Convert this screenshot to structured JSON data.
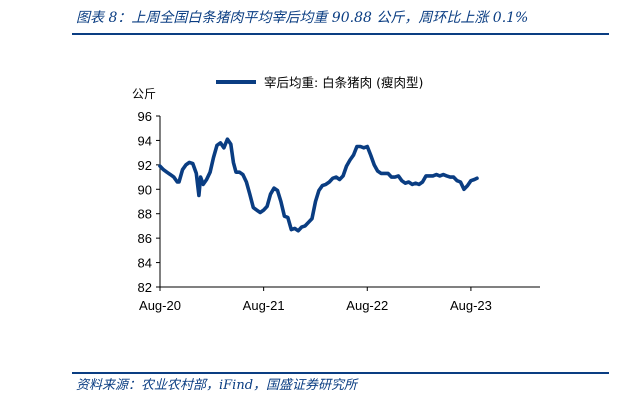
{
  "figure": {
    "title": "图表 8：上周全国白条猪肉平均宰后均重 90.88 公斤，周环比上涨 0.1%",
    "source": "资料来源：农业农村部，iFind，国盛证券研究所"
  },
  "chart_data": {
    "type": "line",
    "unit": "公斤",
    "ylim": [
      82,
      96
    ],
    "yticks": [
      82,
      84,
      86,
      88,
      90,
      92,
      94,
      96
    ],
    "ytick_labels": [
      "82",
      "84",
      "86",
      "88",
      "90",
      "92",
      "94",
      "96"
    ],
    "xticks": [
      {
        "label": "Aug-20",
        "t": 0
      },
      {
        "label": "Aug-21",
        "t": 12
      },
      {
        "label": "Aug-22",
        "t": 24
      },
      {
        "label": "Aug-23",
        "t": 36
      }
    ],
    "xlim": [
      0,
      44
    ],
    "grid": false,
    "legend_position": "top-center",
    "colors": {
      "series": "#0a3d82"
    },
    "series": [
      {
        "name": "宰后均重: 白条猪肉 (瘦肉型)",
        "points": [
          [
            0.0,
            91.9
          ],
          [
            0.4,
            91.6
          ],
          [
            0.8,
            91.4
          ],
          [
            1.2,
            91.2
          ],
          [
            1.6,
            91.0
          ],
          [
            2.0,
            90.6
          ],
          [
            2.2,
            90.6
          ],
          [
            2.6,
            91.6
          ],
          [
            3.0,
            92.0
          ],
          [
            3.4,
            92.2
          ],
          [
            3.8,
            92.1
          ],
          [
            4.2,
            91.3
          ],
          [
            4.5,
            89.5
          ],
          [
            4.7,
            91.0
          ],
          [
            5.0,
            90.4
          ],
          [
            5.4,
            90.8
          ],
          [
            5.8,
            91.4
          ],
          [
            6.2,
            92.6
          ],
          [
            6.6,
            93.6
          ],
          [
            7.0,
            93.8
          ],
          [
            7.4,
            93.4
          ],
          [
            7.8,
            94.1
          ],
          [
            8.2,
            93.7
          ],
          [
            8.5,
            92.2
          ],
          [
            8.8,
            91.4
          ],
          [
            9.2,
            91.4
          ],
          [
            9.6,
            91.2
          ],
          [
            10.0,
            90.6
          ],
          [
            10.4,
            89.6
          ],
          [
            10.8,
            88.5
          ],
          [
            11.2,
            88.3
          ],
          [
            11.6,
            88.1
          ],
          [
            12.0,
            88.3
          ],
          [
            12.4,
            88.6
          ],
          [
            12.8,
            89.6
          ],
          [
            13.2,
            90.1
          ],
          [
            13.6,
            89.9
          ],
          [
            14.0,
            89.0
          ],
          [
            14.4,
            87.8
          ],
          [
            14.8,
            87.7
          ],
          [
            15.2,
            86.7
          ],
          [
            15.6,
            86.8
          ],
          [
            16.0,
            86.6
          ],
          [
            16.4,
            86.9
          ],
          [
            16.8,
            87.0
          ],
          [
            17.2,
            87.3
          ],
          [
            17.6,
            87.6
          ],
          [
            18.0,
            89.0
          ],
          [
            18.4,
            89.9
          ],
          [
            18.8,
            90.3
          ],
          [
            19.2,
            90.4
          ],
          [
            19.6,
            90.6
          ],
          [
            20.0,
            90.9
          ],
          [
            20.4,
            91.0
          ],
          [
            20.8,
            90.8
          ],
          [
            21.2,
            91.1
          ],
          [
            21.6,
            91.9
          ],
          [
            22.0,
            92.4
          ],
          [
            22.4,
            92.8
          ],
          [
            22.8,
            93.5
          ],
          [
            23.2,
            93.5
          ],
          [
            23.6,
            93.4
          ],
          [
            24.0,
            93.5
          ],
          [
            24.4,
            92.8
          ],
          [
            24.8,
            92.0
          ],
          [
            25.2,
            91.5
          ],
          [
            25.6,
            91.3
          ],
          [
            26.0,
            91.3
          ],
          [
            26.4,
            91.3
          ],
          [
            26.8,
            91.0
          ],
          [
            27.2,
            91.0
          ],
          [
            27.6,
            91.1
          ],
          [
            28.0,
            90.7
          ],
          [
            28.4,
            90.5
          ],
          [
            28.8,
            90.6
          ],
          [
            29.2,
            90.4
          ],
          [
            29.6,
            90.5
          ],
          [
            30.0,
            90.4
          ],
          [
            30.4,
            90.6
          ],
          [
            30.8,
            91.1
          ],
          [
            31.2,
            91.1
          ],
          [
            31.6,
            91.1
          ],
          [
            32.0,
            91.2
          ],
          [
            32.4,
            91.1
          ],
          [
            32.8,
            91.2
          ],
          [
            33.2,
            91.1
          ],
          [
            33.6,
            91.0
          ],
          [
            34.0,
            91.0
          ],
          [
            34.4,
            90.7
          ],
          [
            34.8,
            90.6
          ],
          [
            35.2,
            90.0
          ],
          [
            35.6,
            90.3
          ],
          [
            36.0,
            90.7
          ],
          [
            36.4,
            90.8
          ],
          [
            36.7,
            90.9
          ]
        ]
      }
    ]
  }
}
